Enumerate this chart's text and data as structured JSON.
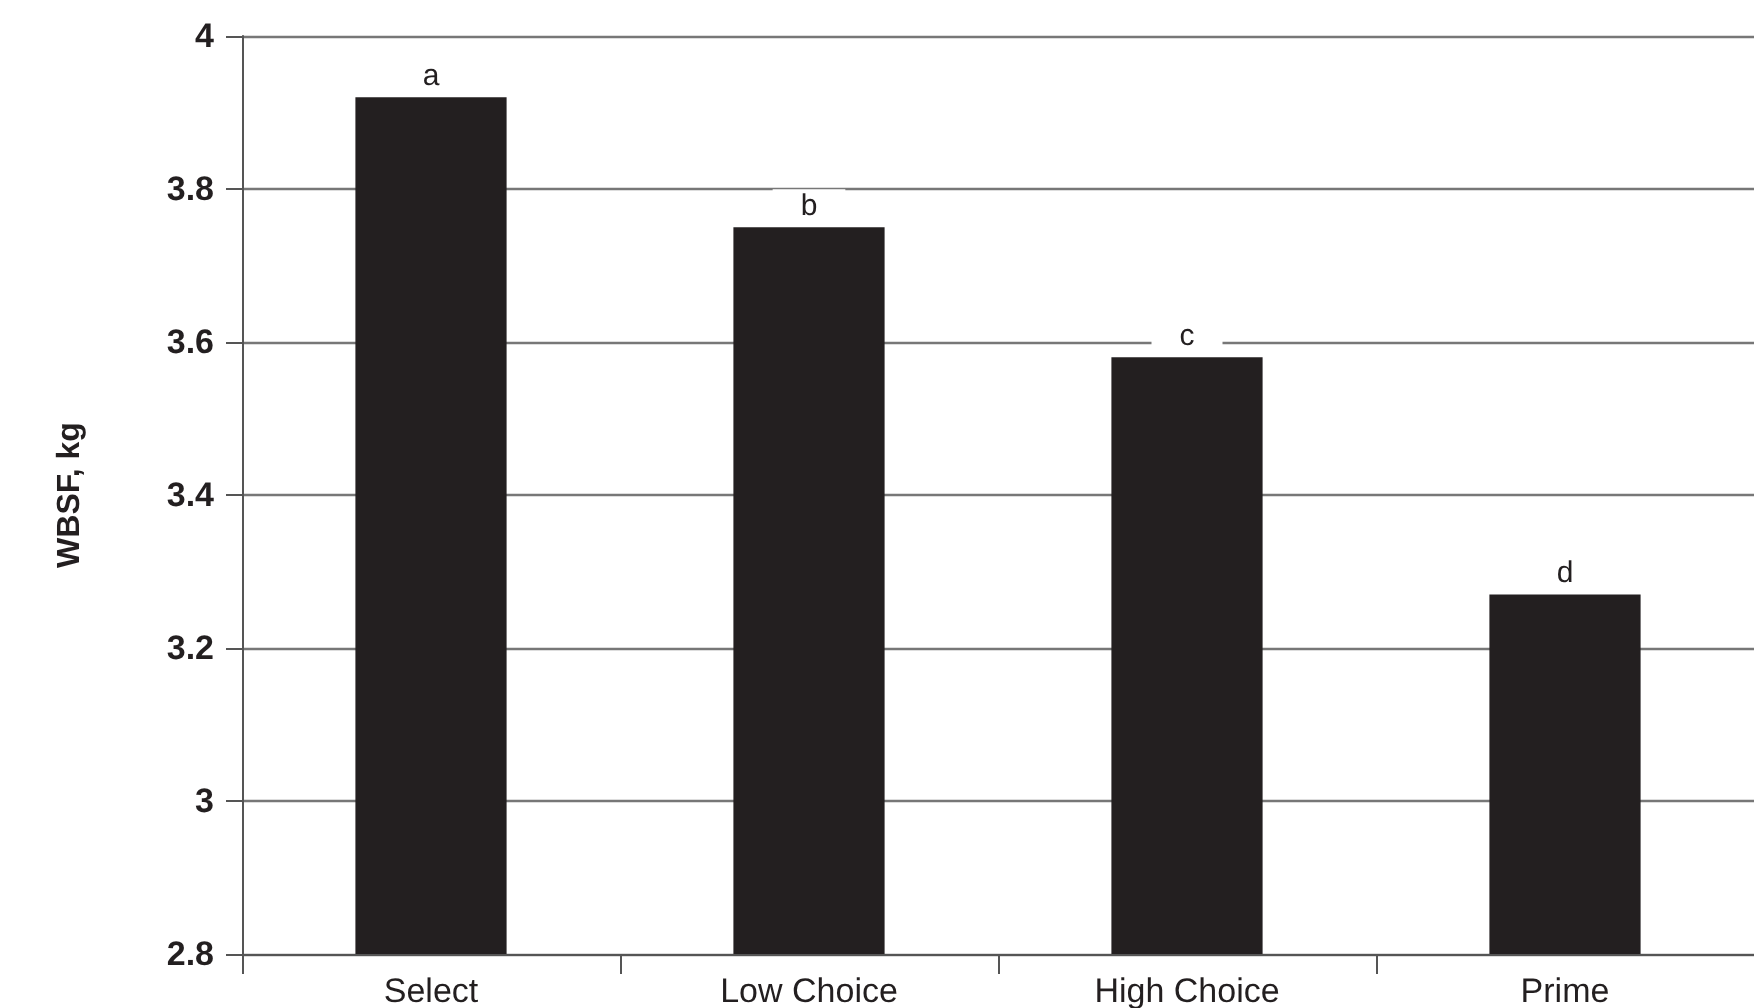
{
  "chart_data": {
    "type": "bar",
    "ylabel": "WBSF, kg",
    "categories": [
      "Select",
      "Low Choice",
      "High Choice",
      "Prime"
    ],
    "values": [
      3.92,
      3.75,
      3.58,
      3.27
    ],
    "color": "#231f20",
    "ylim": [
      2.8,
      4
    ],
    "yticks": [
      2.8,
      3,
      3.2,
      3.4,
      3.6,
      3.8,
      4
    ],
    "grid": "y",
    "annotations": [
      {
        "text": "a",
        "x": "Select",
        "y": 3.92
      },
      {
        "text": "b",
        "x": "Low Choice",
        "y": 3.75
      },
      {
        "text": "c",
        "x": "High Choice",
        "y": 3.58
      },
      {
        "text": "d",
        "x": "Prime",
        "y": 3.27
      }
    ]
  }
}
